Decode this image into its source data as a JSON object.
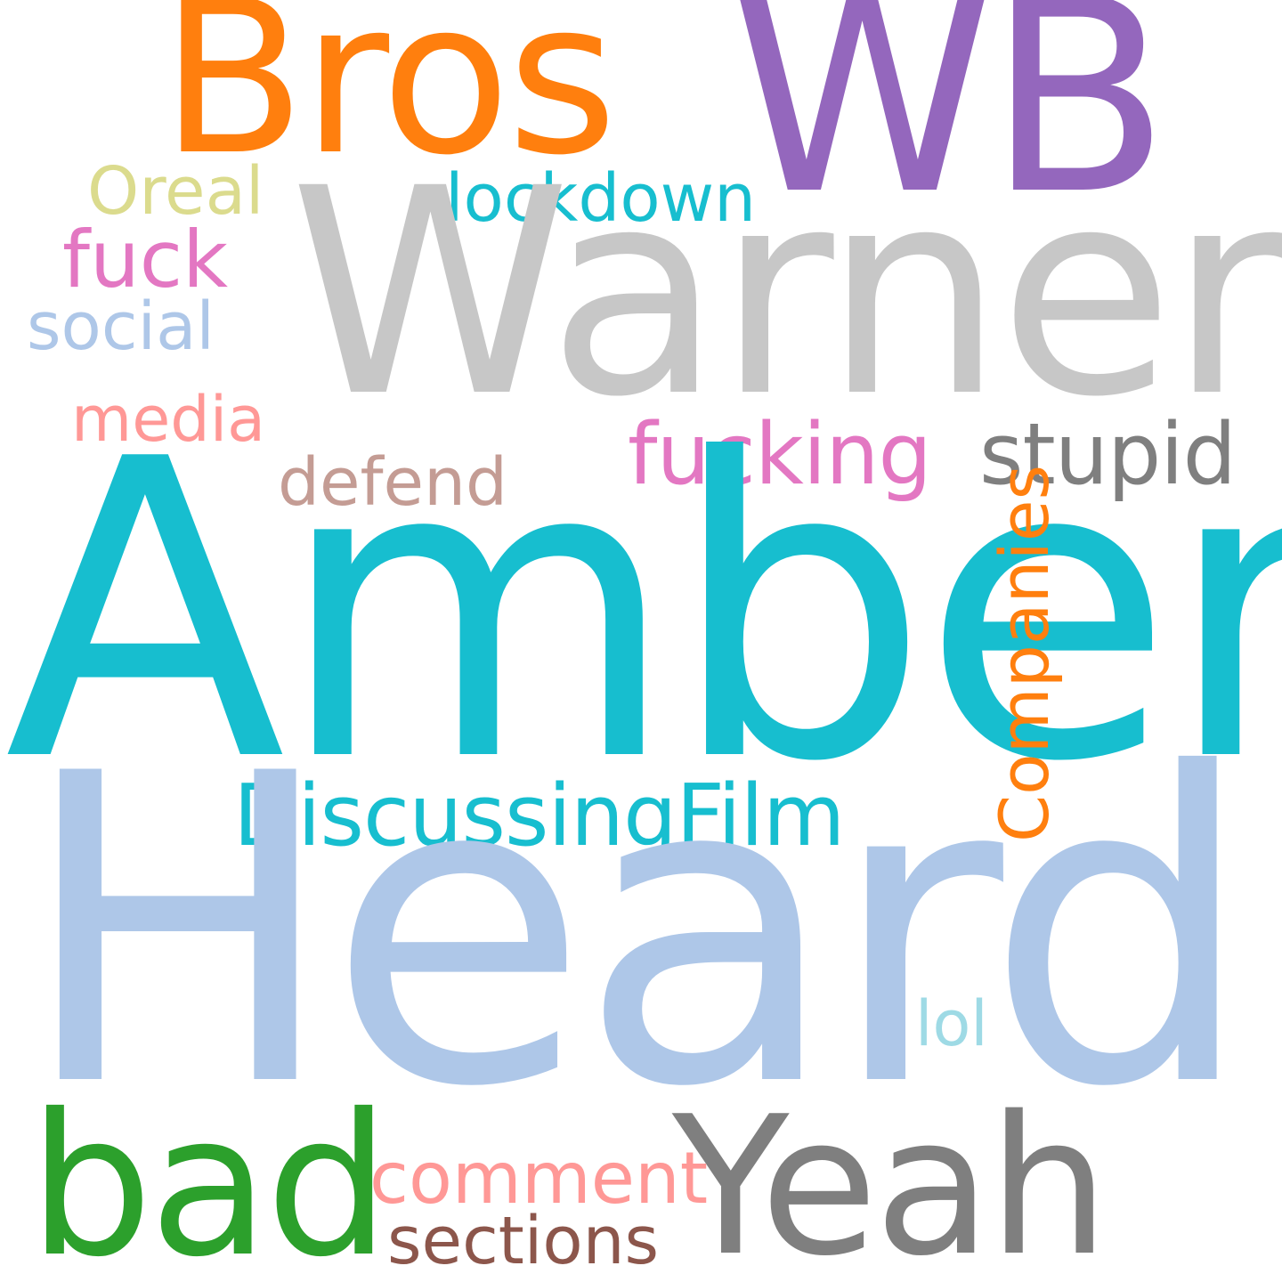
{
  "words": {
    "amber": {
      "text": "Amber",
      "color": "#17becf"
    },
    "heard": {
      "text": "Heard",
      "color": "#aec7e8"
    },
    "warner": {
      "text": "Warner",
      "color": "#c7c7c7"
    },
    "wb": {
      "text": "WB",
      "color": "#9467bd"
    },
    "bros": {
      "text": "Bros",
      "color": "#ff7f0e"
    },
    "yeah": {
      "text": "Yeah",
      "color": "#7f7f7f"
    },
    "bad": {
      "text": "bad",
      "color": "#2ca02c"
    },
    "discussing": {
      "text": "DiscussingFilm",
      "color": "#17becf"
    },
    "fucking": {
      "text": "fucking",
      "color": "#e377c2"
    },
    "stupid": {
      "text": "stupid",
      "color": "#7f7f7f"
    },
    "lockdown": {
      "text": "lockdown",
      "color": "#17becf"
    },
    "oreal": {
      "text": "Oreal",
      "color": "#dbdb8d"
    },
    "fuck": {
      "text": "fuck",
      "color": "#e377c2"
    },
    "social": {
      "text": "social",
      "color": "#aec7e8"
    },
    "media": {
      "text": "media",
      "color": "#ff9896"
    },
    "defend": {
      "text": "defend",
      "color": "#c49c94"
    },
    "lol": {
      "text": "lol",
      "color": "#9edae5"
    },
    "comment": {
      "text": "comment",
      "color": "#ff9896"
    },
    "sections": {
      "text": "sections",
      "color": "#8c564b"
    },
    "companies": {
      "text": "Companies",
      "color": "#ff7f0e"
    }
  }
}
